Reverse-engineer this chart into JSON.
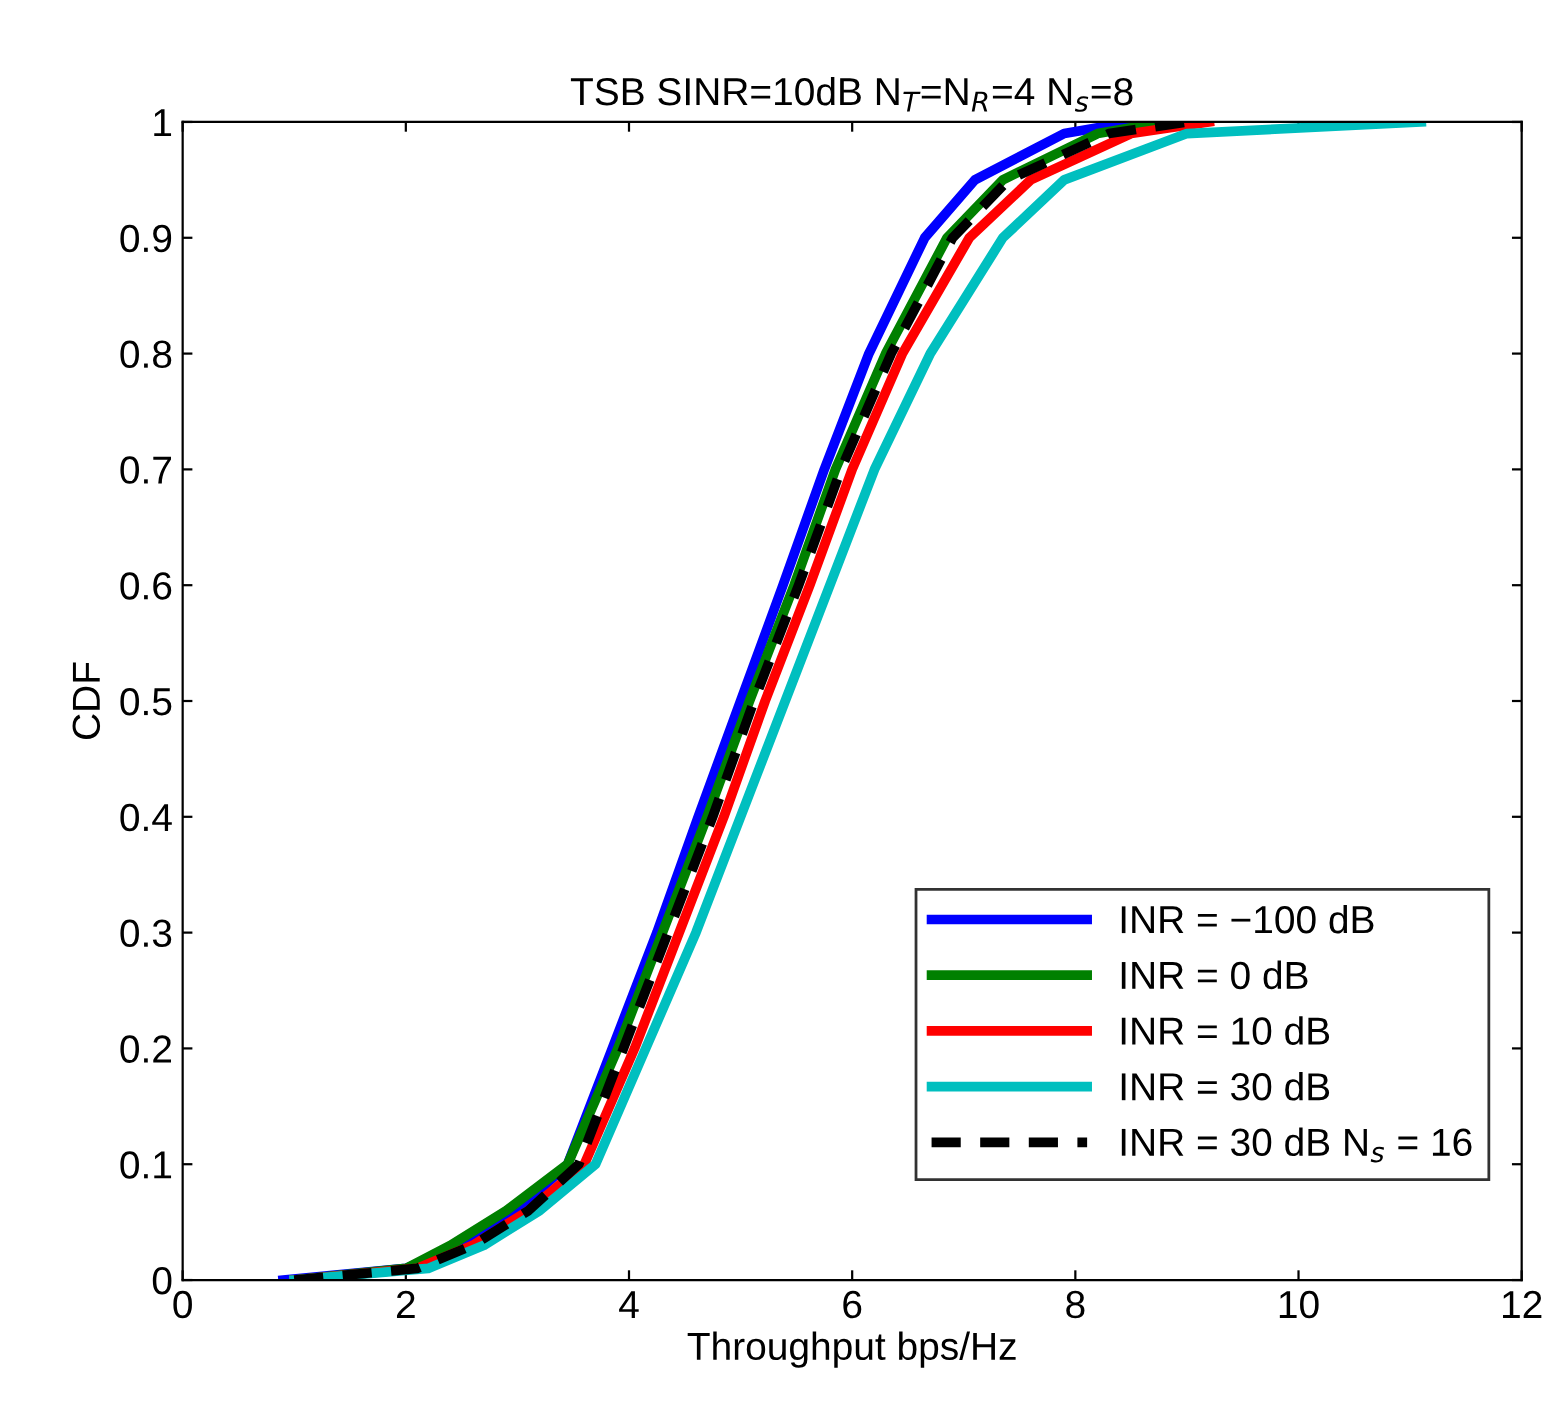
{
  "chart_data": {
    "type": "line",
    "title": "TSB SINR=10dB N$_{T}$=N$_{R}$=4 N$_{s}$=8",
    "xlabel": "Throughput bps/Hz",
    "ylabel": "CDF",
    "xlim": [
      0,
      12
    ],
    "xticks": [
      0,
      2,
      4,
      6,
      8,
      10,
      12
    ],
    "ylim": [
      0,
      1
    ],
    "yticks": [
      0,
      0.1,
      0.2,
      0.3,
      0.4,
      0.5,
      0.6,
      0.7,
      0.8,
      0.9,
      1
    ],
    "grid": false,
    "legend": "bottom right",
    "marker": "none",
    "series": [
      {
        "name": "INR = −100 dB",
        "color": "#0000ff",
        "line_style": "solid",
        "x": [
          0.9,
          2.0,
          2.5,
          3.0,
          3.45,
          3.85,
          4.25,
          4.62,
          5.0,
          5.38,
          5.75,
          6.15,
          6.65,
          7.1,
          7.9,
          8.5
        ],
        "values": [
          0,
          0.01,
          0.03,
          0.06,
          0.1,
          0.2,
          0.3,
          0.4,
          0.5,
          0.6,
          0.7,
          0.8,
          0.9,
          0.95,
          0.99,
          1.0
        ]
      },
      {
        "name": "INR = 0 dB",
        "color": "#008000",
        "line_style": "solid",
        "x": [
          1.0,
          2.0,
          2.4,
          2.9,
          3.45,
          3.9,
          4.3,
          4.7,
          5.08,
          5.48,
          5.85,
          6.3,
          6.85,
          7.35,
          8.2,
          8.8
        ],
        "values": [
          0,
          0.01,
          0.03,
          0.06,
          0.1,
          0.2,
          0.3,
          0.4,
          0.5,
          0.6,
          0.7,
          0.8,
          0.9,
          0.95,
          0.99,
          1.0
        ]
      },
      {
        "name": "INR = 10 dB",
        "color": "#ff0000",
        "line_style": "solid",
        "x": [
          1.0,
          2.1,
          2.6,
          3.1,
          3.6,
          4.05,
          4.45,
          4.85,
          5.22,
          5.62,
          6.0,
          6.45,
          7.05,
          7.6,
          8.5,
          9.2
        ],
        "values": [
          0,
          0.01,
          0.03,
          0.06,
          0.1,
          0.2,
          0.3,
          0.4,
          0.5,
          0.6,
          0.7,
          0.8,
          0.9,
          0.95,
          0.99,
          1.0
        ]
      },
      {
        "name": "INR = 30 dB",
        "color": "#00bfbf",
        "line_style": "solid",
        "x": [
          1.0,
          2.2,
          2.7,
          3.2,
          3.7,
          4.15,
          4.6,
          5.0,
          5.4,
          5.8,
          6.2,
          6.7,
          7.35,
          7.9,
          9.0,
          11.1
        ],
        "values": [
          0,
          0.01,
          0.03,
          0.06,
          0.1,
          0.2,
          0.3,
          0.4,
          0.5,
          0.6,
          0.7,
          0.8,
          0.9,
          0.95,
          0.99,
          1.0
        ]
      },
      {
        "name": "INR = 30 dB N$_{s}$ = 16",
        "color": "#000000",
        "line_style": "dashed",
        "x": [
          1.0,
          2.1,
          2.6,
          3.1,
          3.55,
          3.95,
          4.35,
          4.75,
          5.12,
          5.52,
          5.9,
          6.35,
          6.9,
          7.4,
          8.3,
          9.0
        ],
        "values": [
          0,
          0.01,
          0.03,
          0.06,
          0.1,
          0.2,
          0.3,
          0.4,
          0.5,
          0.6,
          0.7,
          0.8,
          0.9,
          0.95,
          0.99,
          1.0
        ]
      }
    ]
  }
}
